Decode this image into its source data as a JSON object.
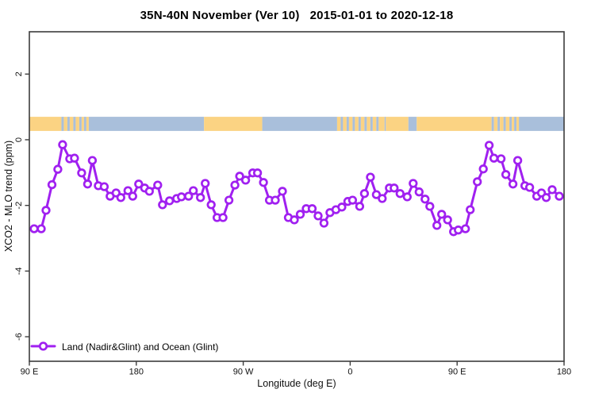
{
  "chart_data": {
    "type": "line",
    "title": "35N-40N November (Ver 10)   2015-01-01 to 2020-12-18",
    "xlabel": "Longitude (deg E)",
    "ylabel": "XCO2 - MLO trend (ppm)",
    "xlim": [
      90,
      540
    ],
    "ylim": [
      -6.75,
      3.3
    ],
    "grid": false,
    "legend_position": "bottom-left-inside",
    "x_ticks": [
      {
        "value": 90,
        "label": "90 E"
      },
      {
        "value": 180,
        "label": "180"
      },
      {
        "value": 270,
        "label": "90 W"
      },
      {
        "value": 360,
        "label": "0"
      },
      {
        "value": 450,
        "label": "90 E"
      },
      {
        "value": 540,
        "label": "180"
      }
    ],
    "y_ticks": [
      {
        "value": 2,
        "label": "2"
      },
      {
        "value": 0,
        "label": "0"
      },
      {
        "value": -2,
        "label": "-2"
      },
      {
        "value": -4,
        "label": "-4"
      },
      {
        "value": -6,
        "label": "-6"
      }
    ],
    "series": [
      {
        "name": "Land (Nadir&Glint) and Ocean (Glint)",
        "color": "#A020F0",
        "marker": "open-circle",
        "x": [
          94,
          100,
          104,
          109,
          114,
          118,
          124,
          128,
          134,
          139,
          143,
          148,
          153,
          158,
          163,
          167,
          173,
          177,
          182,
          187,
          191,
          198,
          202,
          208,
          214,
          218,
          224,
          228,
          234,
          238,
          243,
          248,
          253,
          258,
          263,
          267,
          272,
          278,
          282,
          287,
          292,
          297,
          303,
          308,
          313,
          318,
          323,
          328,
          333,
          338,
          343,
          348,
          353,
          358,
          362,
          368,
          372,
          377,
          382,
          387,
          393,
          397,
          402,
          408,
          413,
          418,
          423,
          427,
          433,
          437,
          442,
          447,
          451,
          457,
          461,
          467,
          472,
          477,
          481,
          487,
          491,
          497,
          501,
          507,
          511,
          517,
          521,
          525,
          530,
          536
        ],
        "y": [
          -2.71,
          -2.71,
          -2.15,
          -1.37,
          -0.9,
          -0.15,
          -0.58,
          -0.56,
          -1.01,
          -1.35,
          -0.63,
          -1.4,
          -1.43,
          -1.72,
          -1.62,
          -1.76,
          -1.55,
          -1.72,
          -1.35,
          -1.47,
          -1.57,
          -1.38,
          -1.98,
          -1.86,
          -1.79,
          -1.74,
          -1.72,
          -1.55,
          -1.76,
          -1.33,
          -1.98,
          -2.37,
          -2.37,
          -1.84,
          -1.38,
          -1.11,
          -1.23,
          -1.01,
          -1.01,
          -1.3,
          -1.84,
          -1.84,
          -1.57,
          -2.37,
          -2.44,
          -2.27,
          -2.1,
          -2.1,
          -2.32,
          -2.54,
          -2.22,
          -2.13,
          -2.05,
          -1.88,
          -1.84,
          -2.03,
          -1.64,
          -1.14,
          -1.67,
          -1.79,
          -1.47,
          -1.47,
          -1.64,
          -1.74,
          -1.33,
          -1.59,
          -1.81,
          -2.03,
          -2.61,
          -2.27,
          -2.44,
          -2.8,
          -2.75,
          -2.71,
          -2.13,
          -1.28,
          -0.89,
          -0.17,
          -0.56,
          -0.58,
          -1.06,
          -1.35,
          -0.63,
          -1.4,
          -1.45,
          -1.72,
          -1.62,
          -1.76,
          -1.52,
          -1.72
        ]
      }
    ],
    "land_ocean_strip": {
      "description": "horizontal land/ocean map band plotted near y=+0.5",
      "y_top_value": 0.7,
      "y_bottom_value": 0.27,
      "land_color": "#FBD383",
      "ocean_color": "#A9BFDB",
      "segments": [
        {
          "from": 90,
          "to": 117,
          "type": "land"
        },
        {
          "from": 117,
          "to": 119,
          "type": "ocean"
        },
        {
          "from": 119,
          "to": 122,
          "type": "land"
        },
        {
          "from": 122,
          "to": 124,
          "type": "ocean"
        },
        {
          "from": 124,
          "to": 127,
          "type": "land"
        },
        {
          "from": 127,
          "to": 129,
          "type": "ocean"
        },
        {
          "from": 129,
          "to": 132,
          "type": "land"
        },
        {
          "from": 132,
          "to": 134,
          "type": "ocean"
        },
        {
          "from": 134,
          "to": 136,
          "type": "land"
        },
        {
          "from": 136,
          "to": 138,
          "type": "ocean"
        },
        {
          "from": 138,
          "to": 140,
          "type": "land"
        },
        {
          "from": 140,
          "to": 237,
          "type": "ocean"
        },
        {
          "from": 237,
          "to": 286,
          "type": "land"
        },
        {
          "from": 286,
          "to": 349,
          "type": "ocean"
        },
        {
          "from": 349,
          "to": 352,
          "type": "land"
        },
        {
          "from": 352,
          "to": 354,
          "type": "ocean"
        },
        {
          "from": 354,
          "to": 357,
          "type": "land"
        },
        {
          "from": 357,
          "to": 359,
          "type": "ocean"
        },
        {
          "from": 359,
          "to": 362,
          "type": "land"
        },
        {
          "from": 362,
          "to": 364,
          "type": "ocean"
        },
        {
          "from": 364,
          "to": 367,
          "type": "land"
        },
        {
          "from": 367,
          "to": 369,
          "type": "ocean"
        },
        {
          "from": 369,
          "to": 372,
          "type": "land"
        },
        {
          "from": 372,
          "to": 374,
          "type": "ocean"
        },
        {
          "from": 374,
          "to": 377,
          "type": "land"
        },
        {
          "from": 377,
          "to": 379,
          "type": "ocean"
        },
        {
          "from": 379,
          "to": 382,
          "type": "land"
        },
        {
          "from": 382,
          "to": 384,
          "type": "ocean"
        },
        {
          "from": 384,
          "to": 389,
          "type": "land"
        },
        {
          "from": 389,
          "to": 390,
          "type": "ocean"
        },
        {
          "from": 390,
          "to": 409,
          "type": "land"
        },
        {
          "from": 409,
          "to": 416,
          "type": "ocean"
        },
        {
          "from": 416,
          "to": 479,
          "type": "land"
        },
        {
          "from": 479,
          "to": 481,
          "type": "ocean"
        },
        {
          "from": 481,
          "to": 484,
          "type": "land"
        },
        {
          "from": 484,
          "to": 486,
          "type": "ocean"
        },
        {
          "from": 486,
          "to": 489,
          "type": "land"
        },
        {
          "from": 489,
          "to": 491,
          "type": "ocean"
        },
        {
          "from": 491,
          "to": 494,
          "type": "land"
        },
        {
          "from": 494,
          "to": 496,
          "type": "ocean"
        },
        {
          "from": 496,
          "to": 498,
          "type": "land"
        },
        {
          "from": 498,
          "to": 500,
          "type": "ocean"
        },
        {
          "from": 500,
          "to": 502,
          "type": "land"
        },
        {
          "from": 502,
          "to": 540,
          "type": "ocean"
        }
      ]
    },
    "colors": {
      "frame": "#3C3C3C",
      "tick_text": "#111111",
      "background": "#FFFFFF"
    }
  },
  "legend": {
    "label": "Land (Nadir&Glint) and Ocean (Glint)"
  }
}
